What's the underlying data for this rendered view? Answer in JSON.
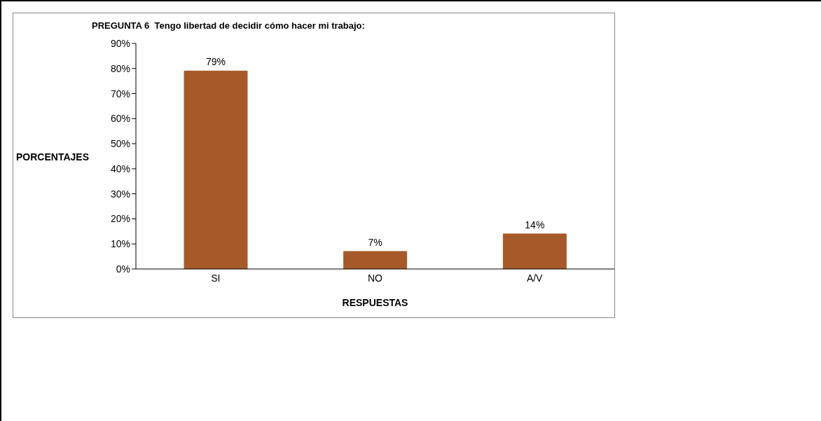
{
  "chart_data": {
    "type": "bar",
    "title": "PREGUNTA 6  Tengo libertad de decidir cómo hacer mi trabajo:",
    "xlabel": "RESPUESTAS",
    "ylabel": "PORCENTAJES",
    "categories": [
      "SI",
      "NO",
      "A/V"
    ],
    "values": [
      79,
      7,
      14
    ],
    "value_labels": [
      "79%",
      "7%",
      "14%"
    ],
    "color": "#a65a2a",
    "ylim": [
      0,
      90
    ],
    "yticks": [
      {
        "value": 0,
        "label": "0%"
      },
      {
        "value": 10,
        "label": "10%"
      },
      {
        "value": 20,
        "label": "20%"
      },
      {
        "value": 30,
        "label": "30%"
      },
      {
        "value": 40,
        "label": "40%"
      },
      {
        "value": 50,
        "label": "50%"
      },
      {
        "value": 60,
        "label": "60%"
      },
      {
        "value": 70,
        "label": "70%"
      },
      {
        "value": 80,
        "label": "80%"
      },
      {
        "value": 90,
        "label": "90%"
      }
    ]
  }
}
